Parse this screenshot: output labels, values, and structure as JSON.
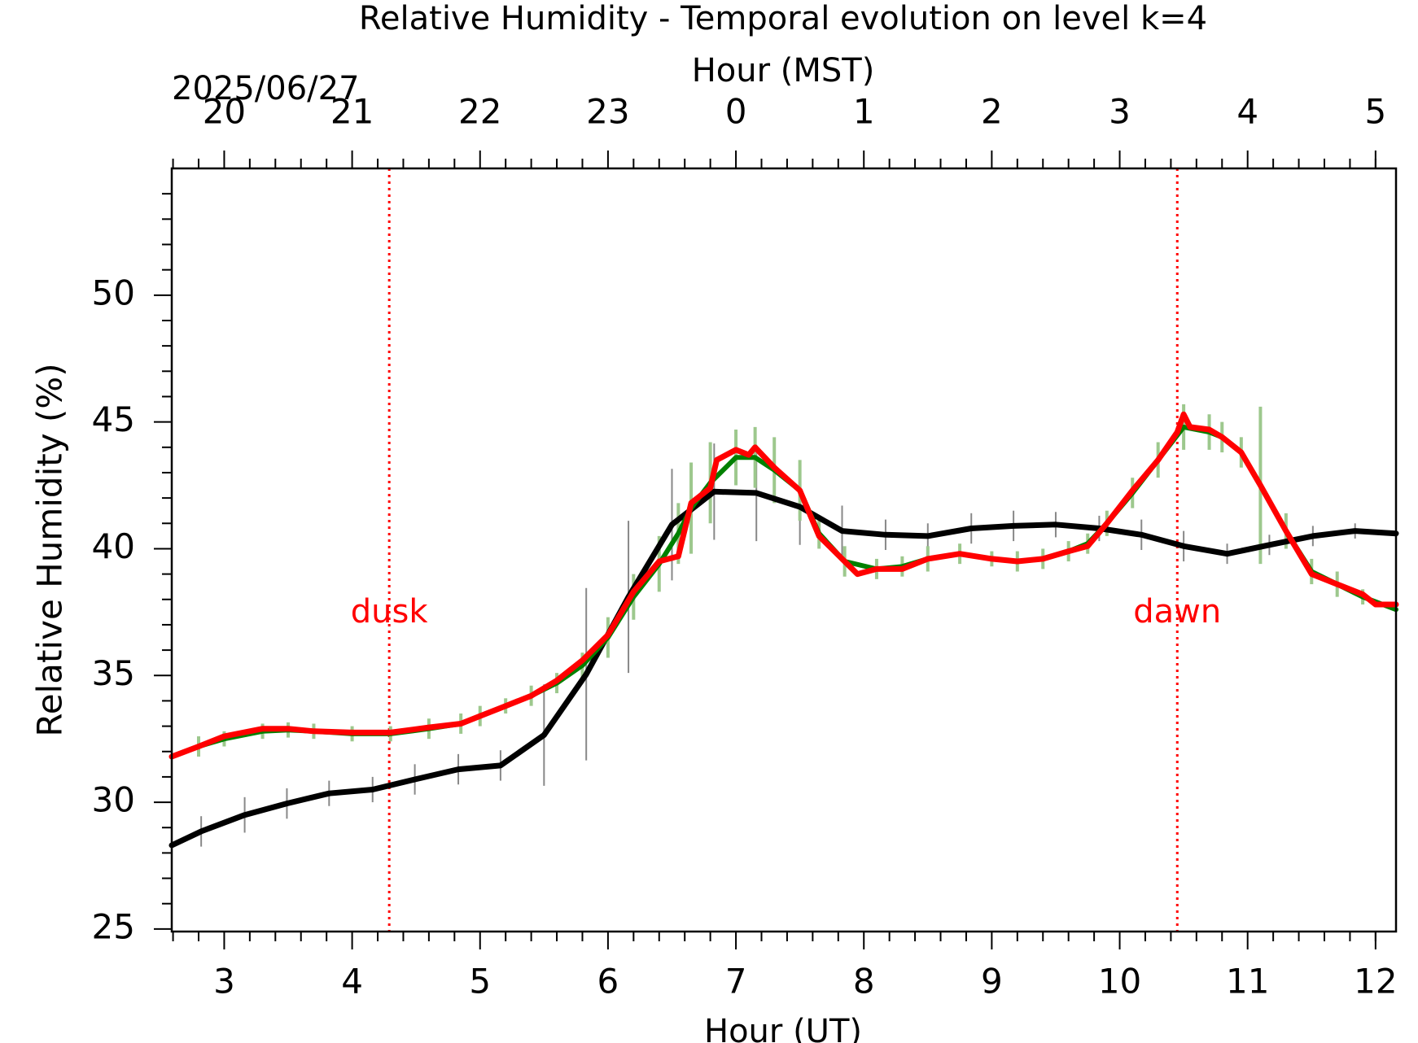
{
  "chart_data": {
    "type": "line",
    "title": "Relative Humidity - Temporal evolution on level k=4",
    "xlabel": "Hour (UT)",
    "x2label": "Hour (MST)",
    "date_label": "2025/06/27",
    "ylabel": "Relative Humidity (%)",
    "xlim": [
      2.59,
      12.16
    ],
    "ylim": [
      24.9,
      55
    ],
    "xticks": [
      3,
      4,
      5,
      6,
      7,
      8,
      9,
      10,
      11,
      12
    ],
    "x2ticks": [
      {
        "value": 3,
        "label": "20"
      },
      {
        "value": 4,
        "label": "21"
      },
      {
        "value": 5,
        "label": "22"
      },
      {
        "value": 6,
        "label": "23"
      },
      {
        "value": 7,
        "label": "0"
      },
      {
        "value": 8,
        "label": "1"
      },
      {
        "value": 9,
        "label": "2"
      },
      {
        "value": 10,
        "label": "3"
      },
      {
        "value": 11,
        "label": "4"
      },
      {
        "value": 12,
        "label": "5"
      }
    ],
    "xminorticks": [
      2.6,
      2.8,
      3.2,
      3.4,
      3.6,
      3.8,
      4.2,
      4.4,
      4.6,
      4.8,
      5.2,
      5.4,
      5.6,
      5.8,
      6.2,
      6.4,
      6.6,
      6.8,
      7.2,
      7.4,
      7.6,
      7.8,
      8.2,
      8.4,
      8.6,
      8.8,
      9.2,
      9.4,
      9.6,
      9.8,
      10.2,
      10.4,
      10.6,
      10.8,
      11.2,
      11.4,
      11.6,
      11.8,
      12.0
    ],
    "yticks": [
      25,
      30,
      35,
      40,
      45,
      50
    ],
    "yminorticks": [
      26,
      27,
      28,
      29,
      31,
      32,
      33,
      34,
      36,
      37,
      38,
      39,
      41,
      42,
      43,
      44,
      46,
      47,
      48,
      49,
      51,
      52,
      53,
      54
    ],
    "vlines": [
      {
        "x": 4.29,
        "label": "dusk",
        "color": "#ff0000"
      },
      {
        "x": 10.45,
        "label": "dawn",
        "color": "#ff0000"
      }
    ],
    "series": [
      {
        "color": "#000000",
        "errors_color": "#888888",
        "x": [
          2.59,
          2.82,
          3.16,
          3.49,
          3.82,
          4.16,
          4.49,
          4.83,
          5.16,
          5.5,
          5.83,
          6.16,
          6.5,
          6.83,
          7.16,
          7.5,
          7.83,
          8.17,
          8.5,
          8.84,
          9.17,
          9.5,
          9.84,
          10.17,
          10.5,
          10.84,
          11.17,
          11.51,
          11.84,
          12.16
        ],
        "values": [
          28.3,
          28.85,
          29.5,
          29.95,
          30.35,
          30.5,
          30.9,
          31.3,
          31.45,
          32.65,
          35.05,
          38.1,
          40.95,
          42.25,
          42.2,
          41.65,
          40.7,
          40.55,
          40.5,
          40.8,
          40.9,
          40.95,
          40.8,
          40.55,
          40.1,
          39.8,
          40.15,
          40.5,
          40.7,
          40.6
        ],
        "errors": [
          null,
          0.6,
          0.7,
          0.6,
          0.5,
          0.5,
          0.6,
          0.6,
          0.6,
          2.0,
          3.4,
          3.0,
          2.2,
          1.9,
          1.9,
          1.5,
          1.0,
          0.6,
          0.5,
          0.6,
          0.6,
          0.5,
          0.5,
          0.6,
          0.6,
          0.4,
          0.4,
          0.4,
          0.3,
          null
        ]
      },
      {
        "color": "#008000",
        "errors_color": "#9dc88d",
        "x": [
          2.59,
          2.8,
          3.0,
          3.3,
          3.5,
          3.7,
          4.0,
          4.3,
          4.6,
          4.85,
          5.0,
          5.2,
          5.4,
          5.6,
          5.8,
          6.0,
          6.2,
          6.4,
          6.55,
          6.65,
          6.8,
          7.0,
          7.15,
          7.3,
          7.5,
          7.65,
          7.85,
          8.1,
          8.3,
          8.5,
          8.75,
          9.0,
          9.2,
          9.4,
          9.6,
          9.75,
          9.9,
          10.1,
          10.3,
          10.5,
          10.7,
          10.8,
          10.95,
          11.1,
          11.3,
          11.5,
          11.7,
          11.9,
          12.16
        ],
        "values": [
          31.8,
          32.2,
          32.5,
          32.8,
          32.85,
          32.8,
          32.7,
          32.7,
          32.9,
          33.1,
          33.4,
          33.8,
          34.2,
          34.7,
          35.4,
          36.5,
          38.1,
          39.4,
          40.6,
          41.6,
          42.6,
          43.6,
          43.6,
          43.1,
          42.3,
          40.6,
          39.5,
          39.2,
          39.3,
          39.6,
          39.8,
          39.6,
          39.5,
          39.6,
          39.9,
          40.2,
          41.0,
          42.2,
          43.5,
          44.8,
          44.6,
          44.4,
          43.8,
          42.5,
          40.7,
          39.1,
          38.6,
          38.1,
          37.6
        ],
        "errors": [
          null,
          0.4,
          0.3,
          0.3,
          0.3,
          0.3,
          0.3,
          0.3,
          0.4,
          0.4,
          0.4,
          0.3,
          0.4,
          0.4,
          0.5,
          0.8,
          0.9,
          1.1,
          1.2,
          1.8,
          1.6,
          1.1,
          1.2,
          1.3,
          1.2,
          0.6,
          0.6,
          0.4,
          0.4,
          0.5,
          0.4,
          0.3,
          0.4,
          0.4,
          0.4,
          0.4,
          0.5,
          0.6,
          0.7,
          0.9,
          0.7,
          0.6,
          0.6,
          3.1,
          0.7,
          0.5,
          0.5,
          0.3,
          null
        ]
      },
      {
        "color": "#ff0000",
        "x": [
          2.59,
          2.8,
          3.0,
          3.3,
          3.5,
          3.7,
          4.0,
          4.3,
          4.6,
          4.85,
          5.0,
          5.2,
          5.4,
          5.6,
          5.8,
          6.0,
          6.2,
          6.4,
          6.55,
          6.65,
          6.8,
          6.85,
          7.0,
          7.1,
          7.15,
          7.3,
          7.5,
          7.65,
          7.85,
          7.95,
          8.1,
          8.3,
          8.5,
          8.75,
          9.0,
          9.2,
          9.4,
          9.6,
          9.75,
          9.9,
          10.1,
          10.3,
          10.45,
          10.5,
          10.55,
          10.7,
          10.8,
          10.95,
          11.1,
          11.3,
          11.5,
          11.7,
          11.9,
          12.0,
          12.16
        ],
        "values": [
          31.8,
          32.2,
          32.6,
          32.9,
          32.9,
          32.8,
          32.75,
          32.75,
          32.95,
          33.1,
          33.4,
          33.8,
          34.2,
          34.8,
          35.6,
          36.6,
          38.3,
          39.5,
          39.7,
          41.8,
          42.4,
          43.5,
          43.9,
          43.7,
          44.0,
          43.2,
          42.3,
          40.5,
          39.5,
          39.0,
          39.2,
          39.2,
          39.6,
          39.8,
          39.6,
          39.5,
          39.6,
          39.9,
          40.1,
          41.0,
          42.3,
          43.5,
          44.6,
          45.3,
          44.8,
          44.7,
          44.4,
          43.8,
          42.5,
          40.7,
          39.0,
          38.6,
          38.2,
          37.8,
          37.8
        ]
      }
    ]
  }
}
